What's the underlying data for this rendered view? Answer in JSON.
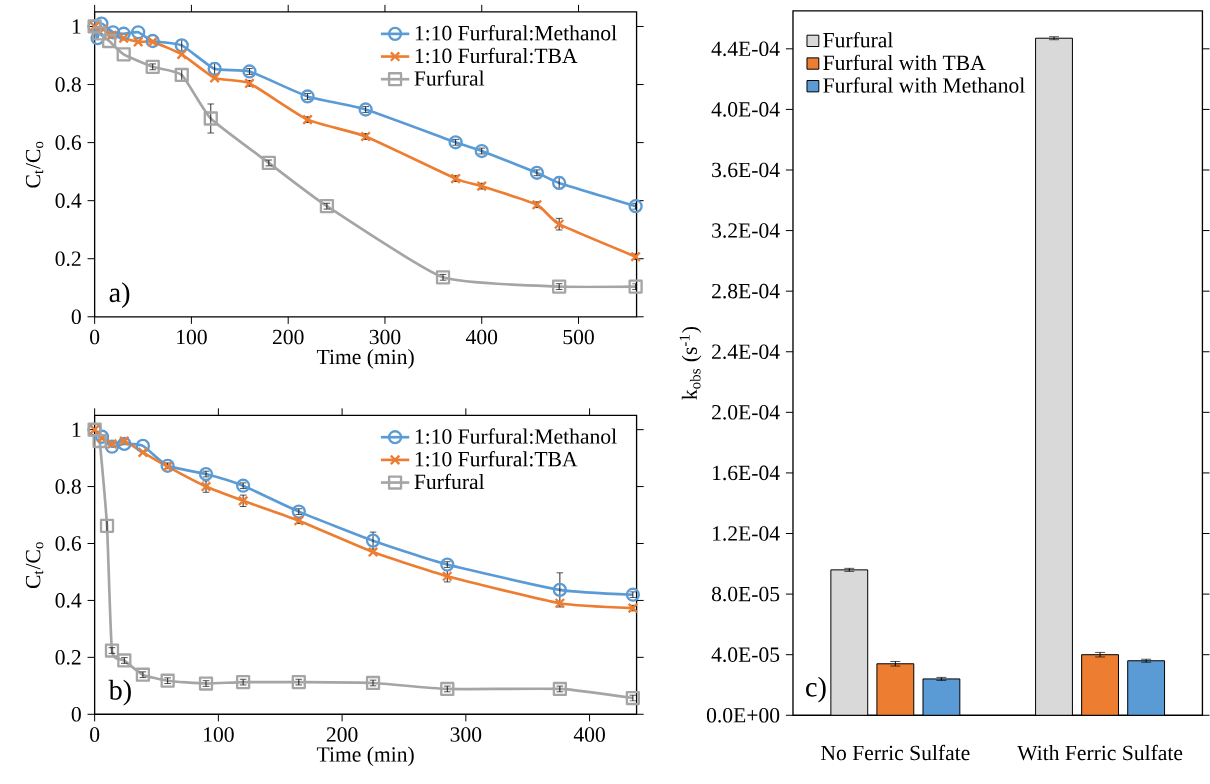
{
  "chart_data": [
    {
      "type": "line",
      "xlabel": "Time (min)",
      "ylabel": "C$_{t}$/C$_{o}$",
      "xlim": [
        0,
        560
      ],
      "ylim": [
        0,
        1.05
      ],
      "xticks": [
        0,
        100,
        200,
        300,
        400,
        500
      ],
      "yticks": [
        0,
        0.2,
        0.4,
        0.6,
        0.8,
        1
      ],
      "legend": "top right",
      "annotations": [
        "a)"
      ],
      "series": [
        {
          "name": "1:10 Furfural:Methanol",
          "color": "#5b9bd5",
          "marker": "circle",
          "x": [
            0,
            3,
            7,
            19,
            30,
            45,
            60,
            90,
            124,
            160,
            220,
            280,
            373,
            400,
            457,
            480,
            559
          ],
          "values": [
            1.0,
            0.96,
            1.01,
            0.98,
            0.975,
            0.98,
            0.95,
            0.935,
            0.854,
            0.845,
            0.759,
            0.714,
            0.601,
            0.571,
            0.496,
            0.461,
            0.381
          ],
          "errors": [
            null,
            null,
            null,
            null,
            null,
            null,
            null,
            0.02,
            0.02,
            0.01,
            0.01,
            0.01,
            0.01,
            0.01,
            0.01,
            0.02,
            0.01
          ]
        },
        {
          "name": "1:10 Furfural:TBA",
          "color": "#ed7d31",
          "marker": "cross",
          "x": [
            0,
            9,
            18,
            30,
            45,
            60,
            90,
            124,
            160,
            220,
            280,
            373,
            400,
            457,
            480,
            559
          ],
          "values": [
            1.0,
            0.99,
            0.97,
            0.96,
            0.947,
            0.947,
            0.904,
            0.823,
            0.804,
            0.679,
            0.621,
            0.476,
            0.45,
            0.386,
            0.319,
            0.207
          ],
          "errors": [
            null,
            null,
            null,
            null,
            null,
            null,
            null,
            null,
            0.01,
            0.01,
            0.01,
            0.01,
            0.01,
            0.01,
            0.02,
            0.01
          ]
        },
        {
          "name": "Furfural",
          "color": "#a5a5a5",
          "marker": "square",
          "x": [
            0,
            5,
            15,
            30,
            60,
            90,
            120,
            180,
            240,
            360,
            480,
            559
          ],
          "values": [
            1.0,
            0.976,
            0.95,
            0.904,
            0.861,
            0.833,
            0.683,
            0.53,
            0.381,
            0.136,
            0.104,
            0.104
          ],
          "errors": [
            null,
            null,
            null,
            null,
            0.01,
            0.02,
            0.05,
            0.01,
            0.01,
            0.01,
            0.01,
            0.01
          ]
        }
      ]
    },
    {
      "type": "line",
      "xlabel": "Time (min)",
      "ylabel": "C$_{t}$/C$_{o}$",
      "xlim": [
        0,
        438
      ],
      "ylim": [
        0,
        1.05
      ],
      "xticks": [
        0,
        100,
        200,
        300,
        400
      ],
      "yticks": [
        0,
        0.2,
        0.4,
        0.6,
        0.8,
        1
      ],
      "legend": "top right",
      "annotations": [
        "b)"
      ],
      "series": [
        {
          "name": "1:10 Furfural:Methanol",
          "color": "#5b9bd5",
          "marker": "circle",
          "x": [
            0,
            6,
            14,
            24,
            39,
            59,
            90,
            120,
            165,
            225,
            285,
            376,
            435
          ],
          "values": [
            1.0,
            0.975,
            0.94,
            0.95,
            0.943,
            0.873,
            0.844,
            0.803,
            0.712,
            0.61,
            0.526,
            0.437,
            0.42
          ],
          "errors": [
            null,
            null,
            null,
            null,
            null,
            0.01,
            0.01,
            0.01,
            0.01,
            0.03,
            0.01,
            0.06,
            0.01
          ]
        },
        {
          "name": "1:10 Furfural:TBA",
          "color": "#ed7d31",
          "marker": "cross",
          "x": [
            0,
            6,
            14,
            24,
            39,
            59,
            90,
            120,
            165,
            225,
            285,
            376,
            435
          ],
          "values": [
            1.0,
            0.97,
            0.95,
            0.96,
            0.92,
            0.87,
            0.8,
            0.75,
            0.68,
            0.57,
            0.485,
            0.39,
            0.373
          ],
          "errors": [
            null,
            null,
            null,
            null,
            null,
            null,
            0.02,
            0.02,
            0.01,
            null,
            0.02,
            null,
            0.01
          ]
        },
        {
          "name": "Furfural",
          "color": "#a5a5a5",
          "marker": "square",
          "x": [
            0,
            4,
            10,
            14,
            24,
            39,
            59,
            90,
            120,
            165,
            225,
            285,
            376,
            435
          ],
          "values": [
            1.0,
            0.96,
            0.662,
            0.224,
            0.189,
            0.139,
            0.118,
            0.108,
            0.113,
            0.113,
            0.11,
            0.089,
            0.089,
            0.057
          ],
          "errors": [
            null,
            null,
            0.02,
            0.01,
            0.01,
            0.01,
            0.01,
            0.01,
            0.01,
            0.01,
            0.01,
            0.01,
            0.01,
            0.01
          ]
        }
      ]
    },
    {
      "type": "bar",
      "ylabel": "k$_{obs}$ (s$^{-1}$)",
      "categories": [
        "No Ferric Sulfate",
        "With Ferric Sulfate"
      ],
      "ylim": [
        0,
        0.000465
      ],
      "yticks": [
        {
          "value": 0,
          "label": "0.0E+00"
        },
        {
          "value": 4e-05,
          "label": "4.0E-05"
        },
        {
          "value": 8e-05,
          "label": "8.0E-05"
        },
        {
          "value": 0.00012,
          "label": "1.2E-04"
        },
        {
          "value": 0.00016,
          "label": "1.6E-04"
        },
        {
          "value": 0.0002,
          "label": "2.0E-04"
        },
        {
          "value": 0.00024,
          "label": "2.4E-04"
        },
        {
          "value": 0.00028,
          "label": "2.8E-04"
        },
        {
          "value": 0.00032,
          "label": "3.2E-04"
        },
        {
          "value": 0.00036,
          "label": "3.6E-04"
        },
        {
          "value": 0.0004,
          "label": "4.0E-04"
        },
        {
          "value": 0.00044,
          "label": "4.4E-04"
        }
      ],
      "legend": "top left",
      "annotations": [
        "c)"
      ],
      "series": [
        {
          "name": "Furfural",
          "color": "#d9d9d9",
          "values": [
            9.6e-05,
            0.000447
          ],
          "errors": [
            1e-06,
            1e-06
          ]
        },
        {
          "name": "Furfural with TBA",
          "color": "#ed7d31",
          "values": [
            3.4e-05,
            4e-05
          ],
          "errors": [
            1.5e-06,
            1.5e-06
          ]
        },
        {
          "name": "Furfural with Methanol",
          "color": "#5b9bd5",
          "values": [
            2.4e-05,
            3.6e-05
          ],
          "errors": [
            1e-06,
            1e-06
          ]
        }
      ]
    }
  ]
}
